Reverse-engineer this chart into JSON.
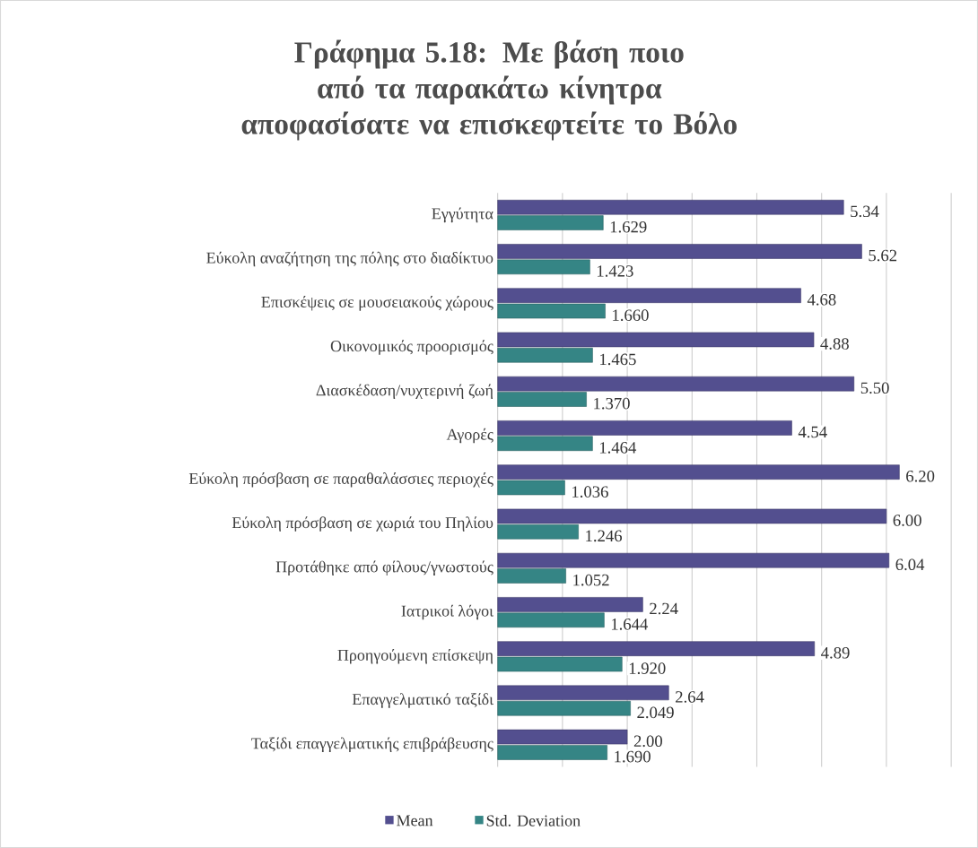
{
  "chart_data": {
    "type": "bar",
    "orientation": "horizontal",
    "title": "Γράφημα 5.18: Με βάση ποιο από τα παρακάτω κίνητρα αποφασίσατε να επισκεφτείτε το Βόλο",
    "categories": [
      "Εγγύτητα",
      "Εύκολη αναζήτηση της πόλης στο διαδίκτυο",
      "Επισκέψεις σε μουσειακούς χώρους",
      "Οικονομικός προορισμός",
      "Διασκέδαση/νυχτερινή ζωή",
      "Αγορές",
      "Εύκολη πρόσβαση σε παραθαλάσσιες περιοχές",
      "Εύκολη πρόσβαση σε χωριά του Πηλίου",
      "Προτάθηκε από φίλους/γνωστούς",
      "Ιατρικοί λόγοι",
      "Προηγούμενη επίσκεψη",
      "Επαγγελματικό ταξίδι",
      "Ταξίδι επαγγελματικής επιβράβευσης"
    ],
    "series": [
      {
        "name": "Mean",
        "color": "#534f8f",
        "values": [
          5.34,
          5.62,
          4.68,
          4.88,
          5.5,
          4.54,
          6.2,
          6.0,
          6.04,
          2.24,
          4.89,
          2.64,
          2.0
        ],
        "value_labels": [
          "5.34",
          "5.62",
          "4.68",
          "4.88",
          "5.50",
          "4.54",
          "6.20",
          "6.00",
          "6.04",
          "2.24",
          "4.89",
          "2.64",
          "2.00"
        ]
      },
      {
        "name": "Std. Deviation",
        "color": "#358585",
        "values": [
          1.629,
          1.423,
          1.66,
          1.465,
          1.37,
          1.464,
          1.036,
          1.246,
          1.052,
          1.644,
          1.92,
          2.049,
          1.69
        ],
        "value_labels": [
          "1.629",
          "1.423",
          "1.660",
          "1.465",
          "1.370",
          "1.464",
          "1.036",
          "1.246",
          "1.052",
          "1.644",
          "1.920",
          "2.049",
          "1.690"
        ]
      }
    ],
    "xlim": [
      0,
      7
    ],
    "xticks": [
      {
        "value": 0,
        "label": null
      },
      {
        "value": 1,
        "label": null
      },
      {
        "value": 2,
        "label": null
      },
      {
        "value": 3,
        "label": null
      },
      {
        "value": 4,
        "label": null
      },
      {
        "value": 5,
        "label": null
      },
      {
        "value": 6,
        "label": null
      },
      {
        "value": 7,
        "label": null
      }
    ],
    "tick_labels": "y",
    "grid": "x",
    "legend": "bottom"
  }
}
